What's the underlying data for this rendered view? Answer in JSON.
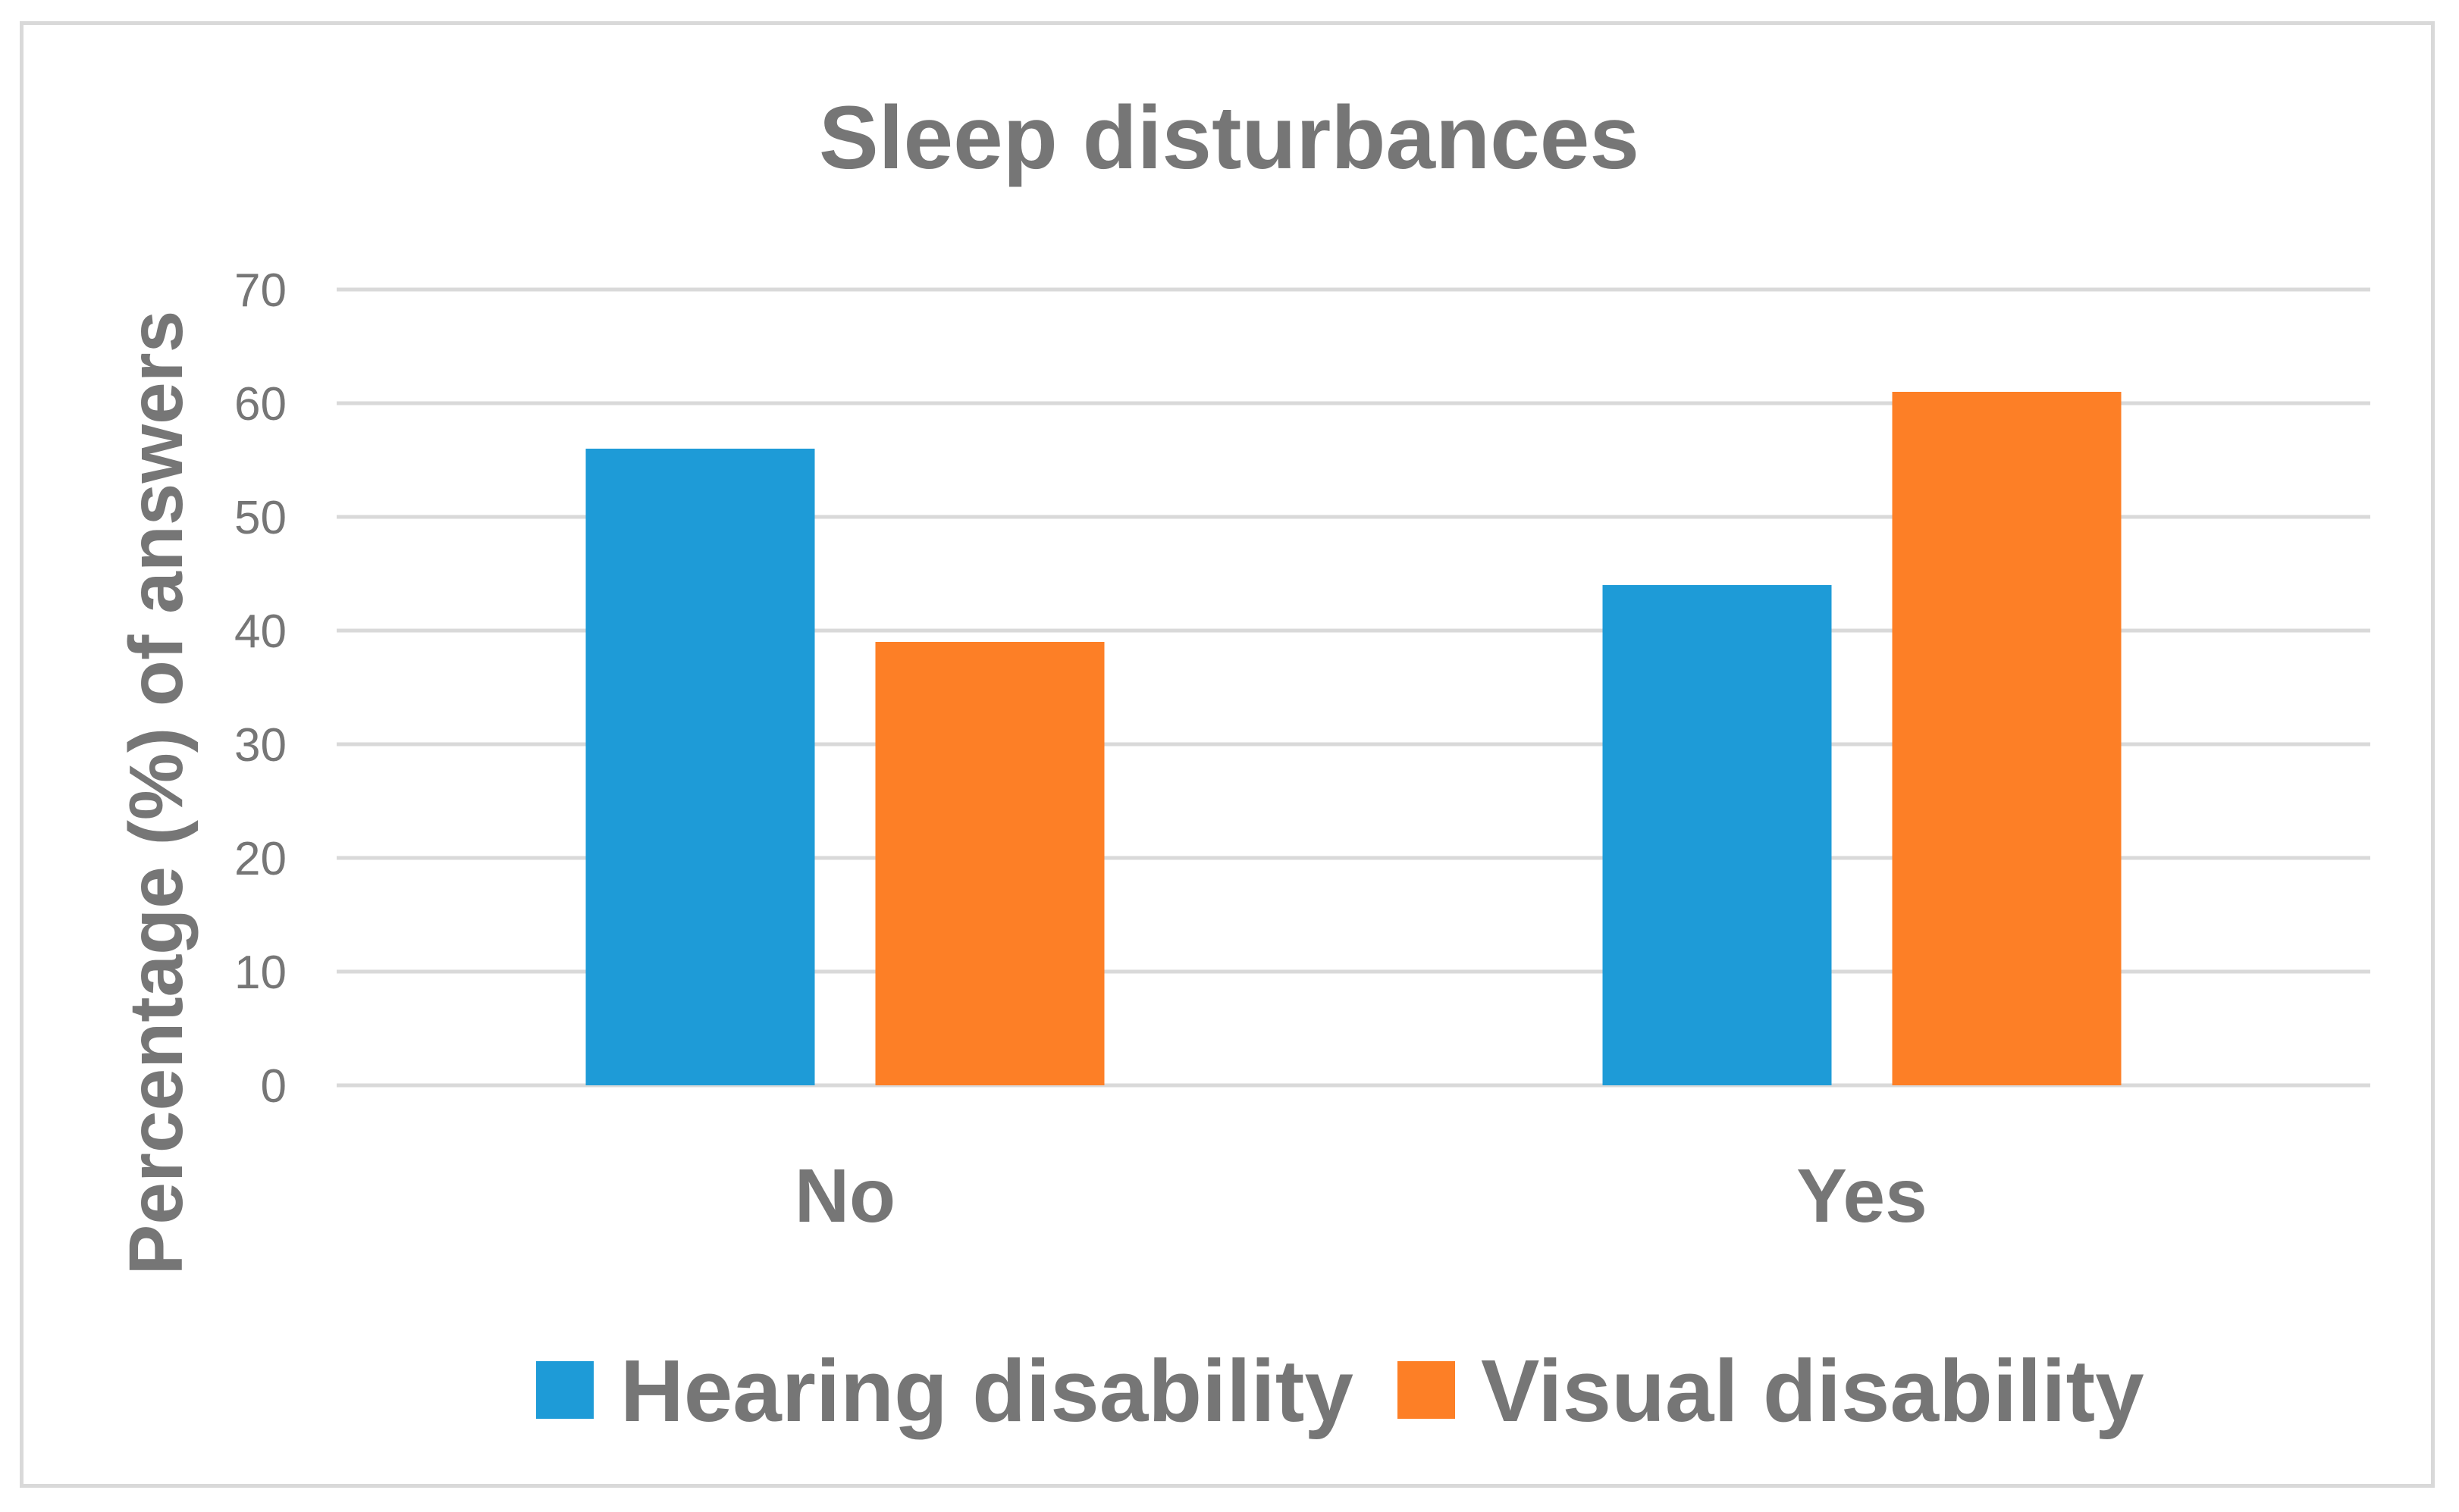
{
  "chart_data": {
    "type": "bar",
    "title": "Sleep disturbances",
    "xlabel": "",
    "ylabel": "Percentage (%) of answers",
    "categories": [
      "No",
      "Yes"
    ],
    "series": [
      {
        "name": "Hearing disability",
        "color": "#1e9bd7",
        "values": [
          56,
          44
        ]
      },
      {
        "name": "Visual disability",
        "color": "#fd7f26",
        "values": [
          39,
          61
        ]
      }
    ],
    "ylim": [
      0,
      70
    ],
    "yticks": [
      "0",
      "10",
      "20",
      "30",
      "40",
      "50",
      "60",
      "70"
    ],
    "grid": true,
    "legend_position": "bottom"
  },
  "colors": {
    "text": "#767676",
    "grid": "#d9d9d9",
    "border": "#d9d9d9"
  }
}
